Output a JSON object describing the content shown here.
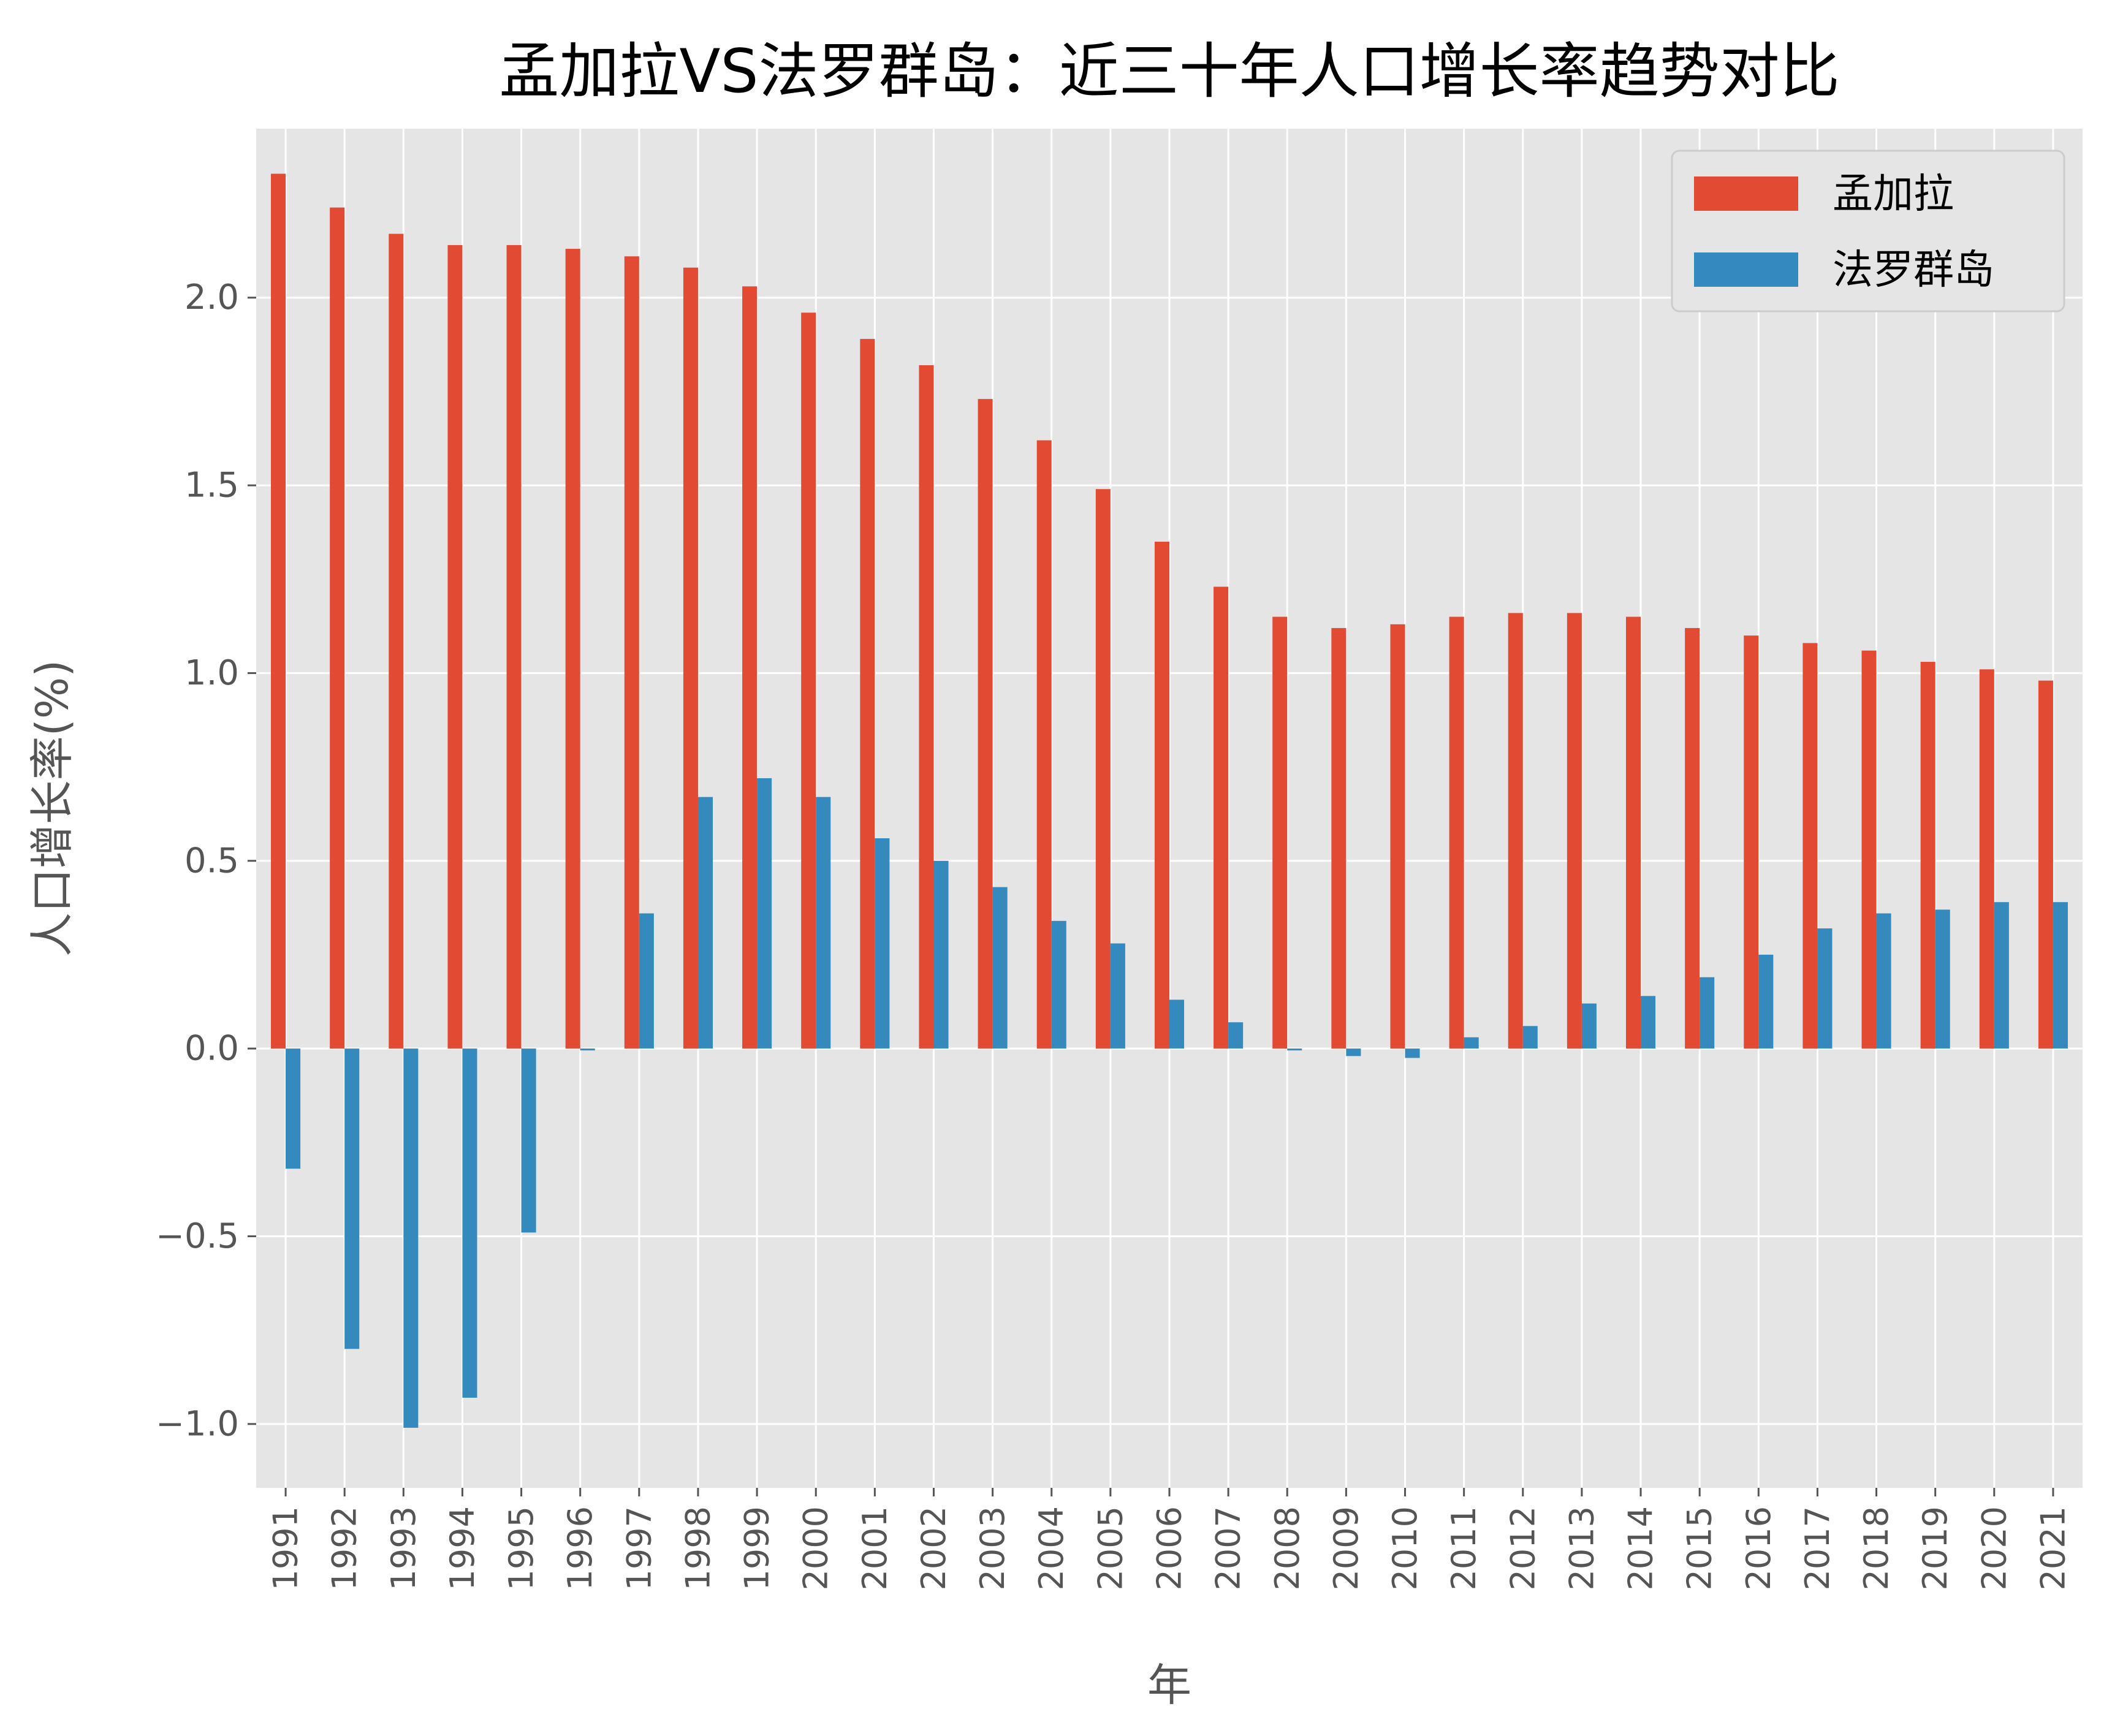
{
  "chart_data": {
    "type": "bar",
    "title": "孟加拉VS法罗群岛：近三十年人口增长率趋势对比",
    "xlabel": "年",
    "ylabel": "人口增长率(%)",
    "categories": [
      "1991",
      "1992",
      "1993",
      "1994",
      "1995",
      "1996",
      "1997",
      "1998",
      "1999",
      "2000",
      "2001",
      "2002",
      "2003",
      "2004",
      "2005",
      "2006",
      "2007",
      "2008",
      "2009",
      "2010",
      "2011",
      "2012",
      "2013",
      "2014",
      "2015",
      "2016",
      "2017",
      "2018",
      "2019",
      "2020",
      "2021"
    ],
    "series": [
      {
        "name": "孟加拉",
        "color": "#E24A33",
        "values": [
          2.33,
          2.24,
          2.17,
          2.14,
          2.14,
          2.13,
          2.11,
          2.08,
          2.03,
          1.96,
          1.89,
          1.82,
          1.73,
          1.62,
          1.49,
          1.35,
          1.23,
          1.15,
          1.12,
          1.13,
          1.15,
          1.16,
          1.16,
          1.15,
          1.12,
          1.1,
          1.08,
          1.06,
          1.03,
          1.01,
          0.98
        ]
      },
      {
        "name": "法罗群岛",
        "color": "#348ABD",
        "values": [
          -0.32,
          -0.8,
          -1.01,
          -0.93,
          -0.49,
          -0.005,
          0.36,
          0.67,
          0.72,
          0.67,
          0.56,
          0.5,
          0.43,
          0.34,
          0.28,
          0.13,
          0.07,
          -0.005,
          -0.02,
          -0.025,
          0.03,
          0.06,
          0.12,
          0.14,
          0.19,
          0.25,
          0.32,
          0.36,
          0.37,
          0.39,
          0.39
        ]
      }
    ],
    "ylim": [
      -1.17,
      2.45
    ],
    "yticks": [
      -1.0,
      -0.5,
      0.0,
      0.5,
      1.0,
      1.5,
      2.0
    ],
    "ytick_labels": [
      "−1.0",
      "−0.5",
      "0.0",
      "0.5",
      "1.0",
      "1.5",
      "2.0"
    ],
    "grid": true,
    "legend_position": "top-right",
    "plot_background": "#E5E5E5",
    "grid_color": "#FFFFFF"
  }
}
